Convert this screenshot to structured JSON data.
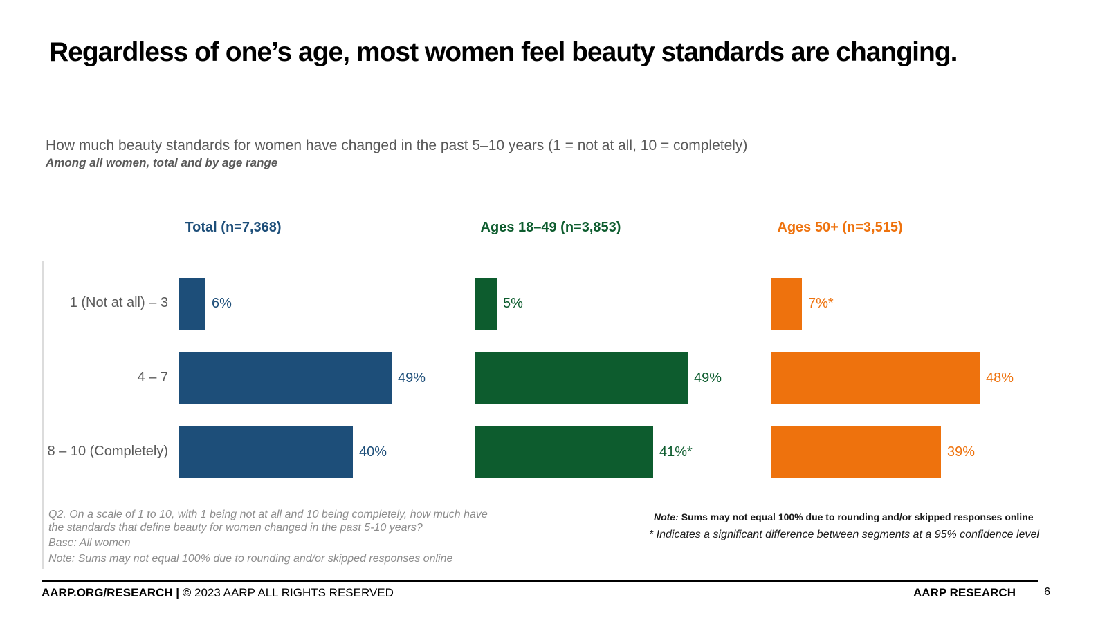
{
  "slide": {
    "title": "Regardless of one’s age, most women feel beauty standards are changing.",
    "question": "How much beauty standards for women have changed in the past 5–10 years (1 = not at all, 10 = completely)",
    "subtitle": "Among all women, total and by age range"
  },
  "colors": {
    "navy": "#1d4e79",
    "green": "#0d5c2e",
    "orange": "#ee720d",
    "label_gray": "#595959",
    "footnote_gray": "#8c8c8c"
  },
  "chart_data": {
    "type": "bar",
    "orientation": "horizontal",
    "value_unit": "%",
    "xlim": [
      0,
      55
    ],
    "grid": false,
    "legend_position": "column-headers-above-each-panel",
    "categories": [
      "1 (Not at all) – 3",
      "4 – 7",
      "8 – 10 (Completely)"
    ],
    "series": [
      {
        "name": "Total (n=7,368)",
        "color": "#1d4e79",
        "values": [
          6,
          49,
          40
        ],
        "labels": [
          "6%",
          "49%",
          "40%"
        ]
      },
      {
        "name": "Ages 18–49 (n=3,853)",
        "color": "#0d5c2e",
        "values": [
          5,
          49,
          41
        ],
        "labels": [
          "5%",
          "49%",
          "41%*"
        ]
      },
      {
        "name": "Ages 50+ (n=3,515)",
        "color": "#ee720d",
        "values": [
          7,
          48,
          39
        ],
        "labels": [
          "7%*",
          "48%",
          "39%"
        ]
      }
    ]
  },
  "footnotes_left": {
    "q2": "Q2. On a scale of 1 to 10, with 1 being not at all and 10 being completely, how much have the standards that define beauty for women changed in the past 5-10 years?",
    "base": "Base: All women",
    "note": "Note: Sums may not equal 100% due to rounding and/or skipped responses online"
  },
  "footnotes_right": {
    "note_prefix": "Note:",
    "note": "Sums may not equal 100% due to rounding and/or skipped responses online",
    "significance": "* Indicates a significant difference between segments at a 95% confidence level"
  },
  "footer": {
    "left_bold": "AARP.ORG/RESEARCH | ©",
    "left_regular": "2023 AARP ALL RIGHTS RESERVED",
    "right": "AARP RESEARCH",
    "page_number": "6"
  }
}
